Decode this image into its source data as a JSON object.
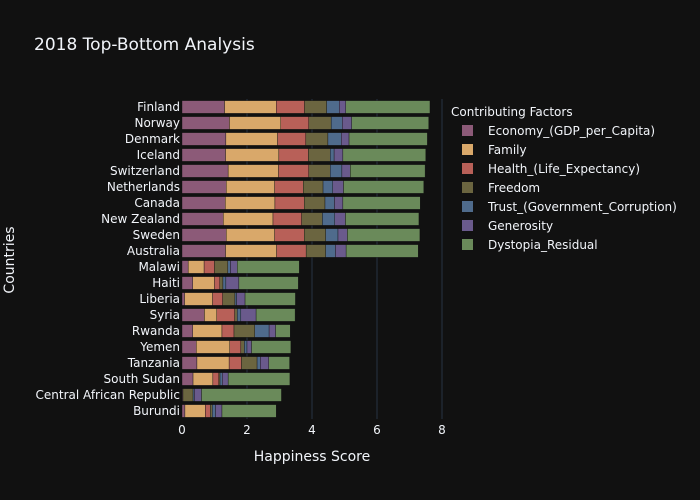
{
  "chart_data": {
    "type": "bar",
    "orientation": "horizontal",
    "barmode": "stack",
    "title": "2018 Top-Bottom Analysis",
    "xlabel": "Happiness Score",
    "ylabel": "Countries",
    "xlim": [
      0,
      8
    ],
    "xticks": [
      0,
      2,
      4,
      6,
      8
    ],
    "grid": true,
    "legend": {
      "title": "Contributing Factors",
      "placement": "right"
    },
    "categories": [
      "Finland",
      "Norway",
      "Denmark",
      "Iceland",
      "Switzerland",
      "Netherlands",
      "Canada",
      "New Zealand",
      "Sweden",
      "Australia",
      "Malawi",
      "Haiti",
      "Liberia",
      "Syria",
      "Rwanda",
      "Yemen",
      "Tanzania",
      "South Sudan",
      "Central African Republic",
      "Burundi"
    ],
    "series": [
      {
        "name": "Economy_(GDP_per_Capita)",
        "color": "#8c5a78",
        "values": [
          1.31,
          1.46,
          1.35,
          1.34,
          1.42,
          1.36,
          1.33,
          1.27,
          1.36,
          1.34,
          0.19,
          0.33,
          0.08,
          0.69,
          0.33,
          0.44,
          0.46,
          0.34,
          0.02,
          0.09
        ]
      },
      {
        "name": "Family",
        "color": "#d9a86a",
        "values": [
          1.59,
          1.58,
          1.59,
          1.64,
          1.55,
          1.49,
          1.53,
          1.53,
          1.49,
          1.57,
          0.49,
          0.67,
          0.86,
          0.38,
          0.9,
          1.03,
          0.99,
          0.61,
          0.0,
          0.63
        ]
      },
      {
        "name": "Health_(Life_Expectancy)",
        "color": "#b86058",
        "values": [
          0.87,
          0.86,
          0.87,
          0.91,
          0.93,
          0.88,
          0.9,
          0.88,
          0.91,
          0.91,
          0.32,
          0.16,
          0.31,
          0.55,
          0.37,
          0.34,
          0.38,
          0.18,
          0.01,
          0.15
        ]
      },
      {
        "name": "Freedom",
        "color": "#6b6540",
        "values": [
          0.68,
          0.69,
          0.68,
          0.67,
          0.66,
          0.61,
          0.64,
          0.64,
          0.66,
          0.6,
          0.41,
          0.1,
          0.38,
          0.08,
          0.64,
          0.11,
          0.48,
          0.04,
          0.31,
          0.06
        ]
      },
      {
        "name": "Trust_(Government_Corruption)",
        "color": "#4f6b8c",
        "values": [
          0.39,
          0.34,
          0.41,
          0.12,
          0.36,
          0.3,
          0.29,
          0.38,
          0.38,
          0.3,
          0.08,
          0.09,
          0.05,
          0.11,
          0.44,
          0.08,
          0.1,
          0.07,
          0.04,
          0.1
        ]
      },
      {
        "name": "Generosity",
        "color": "#6a5a8c",
        "values": [
          0.2,
          0.29,
          0.24,
          0.27,
          0.26,
          0.33,
          0.26,
          0.33,
          0.29,
          0.33,
          0.21,
          0.4,
          0.26,
          0.47,
          0.2,
          0.14,
          0.26,
          0.18,
          0.22,
          0.2
        ]
      },
      {
        "name": "Dystopia_Residual",
        "color": "#6a8a5a",
        "values": [
          2.59,
          2.37,
          2.41,
          2.55,
          2.3,
          2.47,
          2.38,
          2.26,
          2.23,
          2.22,
          1.91,
          1.83,
          1.55,
          1.2,
          0.45,
          1.21,
          0.64,
          1.9,
          2.46,
          1.67
        ]
      }
    ]
  }
}
